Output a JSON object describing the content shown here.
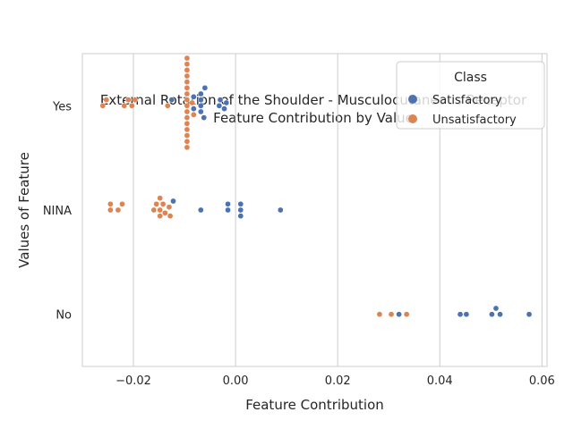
{
  "chart_data": {
    "type": "scatter",
    "subtype": "swarm",
    "title": [
      "External Rotation of the Shoulder - Musculocutaneous Receptor",
      "Feature Contribution by Value"
    ],
    "xlabel": "Feature Contribution",
    "ylabel": "Values of Feature",
    "xlim": [
      -0.03,
      0.061
    ],
    "xticks": [
      -0.02,
      0.0,
      0.02,
      0.04,
      0.06
    ],
    "xtick_labels": [
      "−0.02",
      "0.00",
      "0.02",
      "0.04",
      "0.06"
    ],
    "categories": [
      "Yes",
      "NINA",
      "No"
    ],
    "grid": "vertical",
    "legend": {
      "title": "Class",
      "placement": "top-right",
      "entries": [
        {
          "label": "Satisfactory",
          "color": "#4c72b0"
        },
        {
          "label": "Unsatisfactory",
          "color": "#dd8452"
        }
      ]
    },
    "series": [
      {
        "name": "Satisfactory",
        "color": "#4c72b0",
        "points": [
          {
            "category": "Yes",
            "x": -0.0125
          },
          {
            "category": "Yes",
            "x": -0.0082
          },
          {
            "category": "Yes",
            "x": -0.0082
          },
          {
            "category": "Yes",
            "x": -0.0068
          },
          {
            "category": "Yes",
            "x": -0.0068
          },
          {
            "category": "Yes",
            "x": -0.0068
          },
          {
            "category": "Yes",
            "x": -0.0068
          },
          {
            "category": "Yes",
            "x": -0.006
          },
          {
            "category": "Yes",
            "x": -0.0062
          },
          {
            "category": "Yes",
            "x": -0.0032
          },
          {
            "category": "Yes",
            "x": -0.003
          },
          {
            "category": "Yes",
            "x": -0.0018
          },
          {
            "category": "Yes",
            "x": -0.0022
          },
          {
            "category": "NINA",
            "x": -0.0122
          },
          {
            "category": "NINA",
            "x": -0.0068
          },
          {
            "category": "NINA",
            "x": -0.0015
          },
          {
            "category": "NINA",
            "x": -0.0015
          },
          {
            "category": "NINA",
            "x": 0.001
          },
          {
            "category": "NINA",
            "x": 0.001
          },
          {
            "category": "NINA",
            "x": 0.001
          },
          {
            "category": "NINA",
            "x": 0.0088
          },
          {
            "category": "No",
            "x": 0.032
          },
          {
            "category": "No",
            "x": 0.044
          },
          {
            "category": "No",
            "x": 0.0452
          },
          {
            "category": "No",
            "x": 0.0502
          },
          {
            "category": "No",
            "x": 0.051
          },
          {
            "category": "No",
            "x": 0.0518
          },
          {
            "category": "No",
            "x": 0.0575
          }
        ]
      },
      {
        "name": "Unsatisfactory",
        "color": "#dd8452",
        "points": [
          {
            "category": "Yes",
            "x": -0.026
          },
          {
            "category": "Yes",
            "x": -0.0253
          },
          {
            "category": "Yes",
            "x": -0.0218
          },
          {
            "category": "Yes",
            "x": -0.021
          },
          {
            "category": "Yes",
            "x": -0.0203
          },
          {
            "category": "Yes",
            "x": -0.0197
          },
          {
            "category": "Yes",
            "x": -0.0133
          },
          {
            "category": "Yes",
            "x": -0.0095
          },
          {
            "category": "Yes",
            "x": -0.0095
          },
          {
            "category": "Yes",
            "x": -0.0095
          },
          {
            "category": "Yes",
            "x": -0.0095
          },
          {
            "category": "Yes",
            "x": -0.0095
          },
          {
            "category": "Yes",
            "x": -0.0095
          },
          {
            "category": "Yes",
            "x": -0.0095
          },
          {
            "category": "Yes",
            "x": -0.0095
          },
          {
            "category": "Yes",
            "x": -0.0095
          },
          {
            "category": "Yes",
            "x": -0.0095
          },
          {
            "category": "Yes",
            "x": -0.0095
          },
          {
            "category": "Yes",
            "x": -0.0095
          },
          {
            "category": "Yes",
            "x": -0.0095
          },
          {
            "category": "Yes",
            "x": -0.0095
          },
          {
            "category": "Yes",
            "x": -0.0095
          },
          {
            "category": "Yes",
            "x": -0.0095
          },
          {
            "category": "Yes",
            "x": -0.0085
          },
          {
            "category": "Yes",
            "x": -0.0082
          },
          {
            "category": "NINA",
            "x": -0.0245
          },
          {
            "category": "NINA",
            "x": -0.0245
          },
          {
            "category": "NINA",
            "x": -0.023
          },
          {
            "category": "NINA",
            "x": -0.0222
          },
          {
            "category": "NINA",
            "x": -0.016
          },
          {
            "category": "NINA",
            "x": -0.0155
          },
          {
            "category": "NINA",
            "x": -0.0148
          },
          {
            "category": "NINA",
            "x": -0.0148
          },
          {
            "category": "NINA",
            "x": -0.0148
          },
          {
            "category": "NINA",
            "x": -0.0142
          },
          {
            "category": "NINA",
            "x": -0.0138
          },
          {
            "category": "NINA",
            "x": -0.013
          },
          {
            "category": "NINA",
            "x": -0.0128
          },
          {
            "category": "No",
            "x": 0.0282
          },
          {
            "category": "No",
            "x": 0.0305
          },
          {
            "category": "No",
            "x": 0.0335
          }
        ]
      }
    ]
  }
}
